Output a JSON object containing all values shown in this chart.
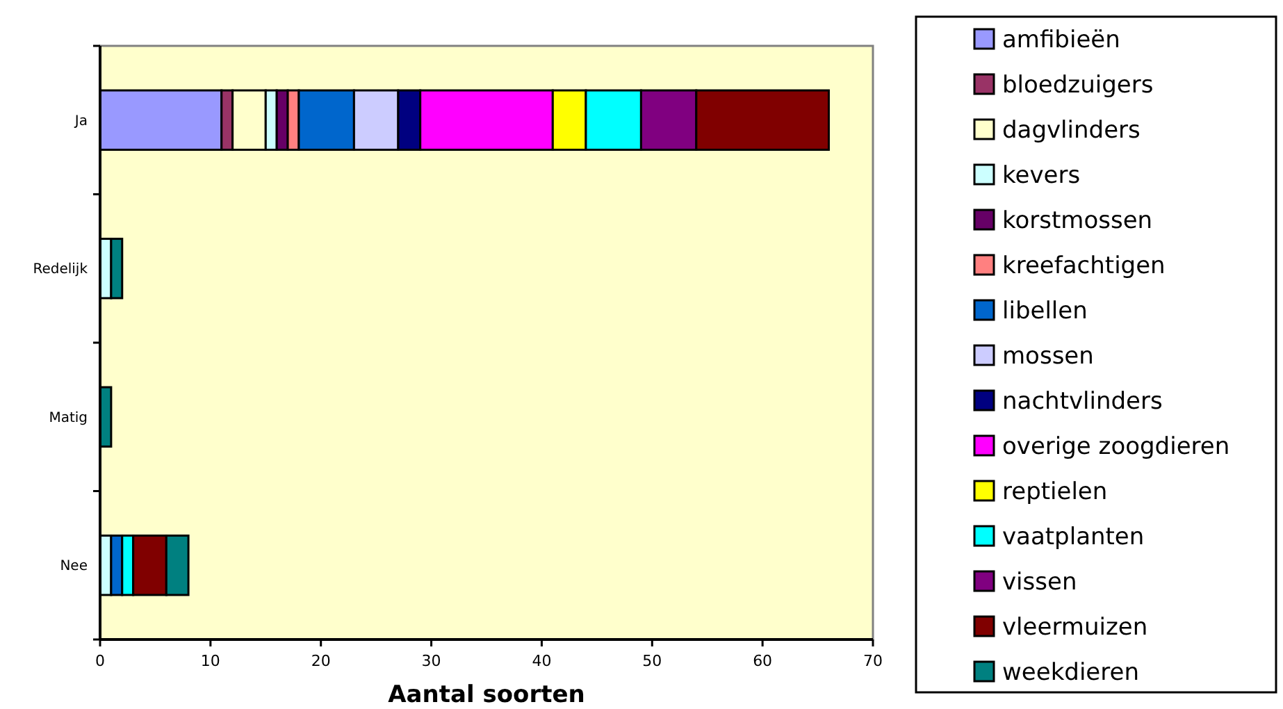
{
  "chart_data": {
    "type": "bar",
    "orientation": "horizontal",
    "stacked": true,
    "xlabel": "Aantal soorten",
    "categories": [
      "Ja",
      "Redelijk",
      "Matig",
      "Nee"
    ],
    "xlim": [
      0,
      70
    ],
    "xticks": [
      0,
      10,
      20,
      30,
      40,
      50,
      60,
      70
    ],
    "legend": "right",
    "series": [
      {
        "name": "amfibieën",
        "color": "#9999ff",
        "values": [
          11,
          0,
          0,
          0
        ]
      },
      {
        "name": "bloedzuigers",
        "color": "#993366",
        "values": [
          1,
          0,
          0,
          0
        ]
      },
      {
        "name": "dagvlinders",
        "color": "#ffffcc",
        "values": [
          3,
          0,
          0,
          0
        ]
      },
      {
        "name": "kevers",
        "color": "#ccffff",
        "values": [
          1,
          1,
          0,
          1
        ]
      },
      {
        "name": "korstmossen",
        "color": "#660066",
        "values": [
          1,
          0,
          0,
          0
        ]
      },
      {
        "name": "kreefachtigen",
        "color": "#ff8080",
        "values": [
          1,
          0,
          0,
          0
        ]
      },
      {
        "name": "libellen",
        "color": "#0066cc",
        "values": [
          5,
          0,
          0,
          1
        ]
      },
      {
        "name": "mossen",
        "color": "#ccccff",
        "values": [
          4,
          0,
          0,
          0
        ]
      },
      {
        "name": "nachtvlinders",
        "color": "#000080",
        "values": [
          2,
          0,
          0,
          0
        ]
      },
      {
        "name": "overige zoogdieren",
        "color": "#ff00ff",
        "values": [
          12,
          0,
          0,
          0
        ]
      },
      {
        "name": "reptielen",
        "color": "#ffff00",
        "values": [
          3,
          0,
          0,
          0
        ]
      },
      {
        "name": "vaatplanten",
        "color": "#00ffff",
        "values": [
          5,
          0,
          0,
          1
        ]
      },
      {
        "name": "vissen",
        "color": "#800080",
        "values": [
          5,
          0,
          0,
          0
        ]
      },
      {
        "name": "vleermuizen",
        "color": "#800000",
        "values": [
          12,
          0,
          0,
          3
        ]
      },
      {
        "name": "weekdieren",
        "color": "#008080",
        "values": [
          0,
          1,
          1,
          2
        ]
      }
    ]
  }
}
